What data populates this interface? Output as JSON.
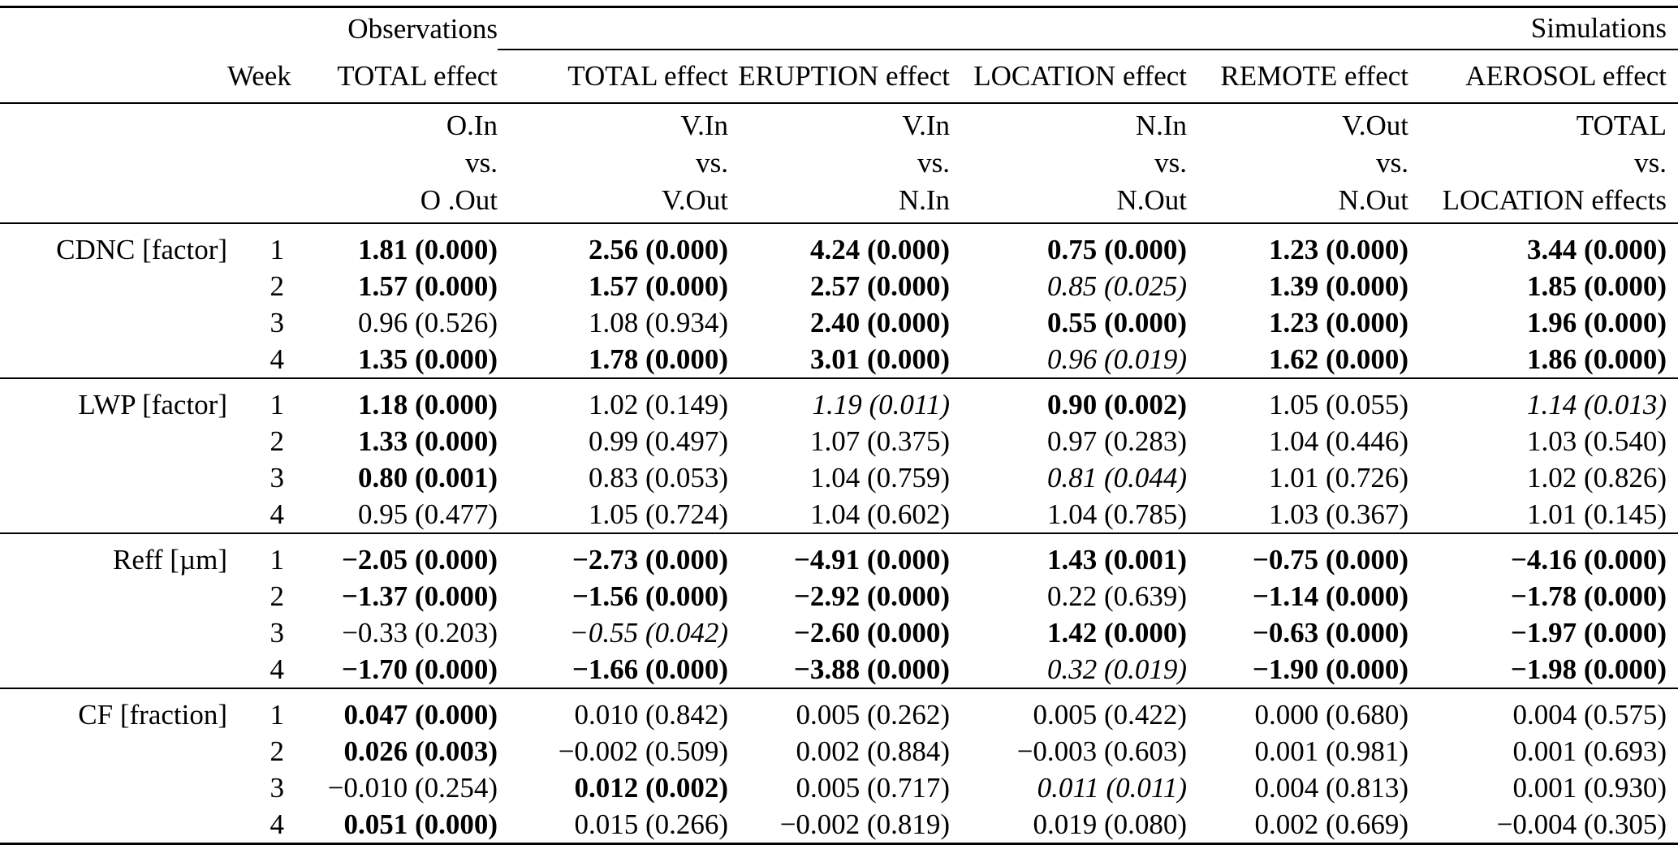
{
  "table": {
    "group_headers": {
      "observations": "Observations",
      "simulations": "Simulations"
    },
    "col_headers": [
      "Week",
      "TOTAL effect",
      "TOTAL effect",
      "ERUPTION effect",
      "LOCATION effect",
      "REMOTE effect",
      "AEROSOL effect"
    ],
    "sub_headers": [
      [
        "O.In",
        "vs.",
        "O .Out"
      ],
      [
        "V.In",
        "vs.",
        "V.Out"
      ],
      [
        "V.In",
        "vs.",
        "N.In"
      ],
      [
        "N.In",
        "vs.",
        "N.Out"
      ],
      [
        "V.Out",
        "vs.",
        "N.Out"
      ],
      [
        "TOTAL",
        "vs.",
        "LOCATION effects"
      ]
    ],
    "groups": [
      {
        "label": "CDNC [factor]",
        "rows": [
          {
            "week": "1",
            "cells": [
              {
                "v": "1.81 (0.000)",
                "s": "b"
              },
              {
                "v": "2.56 (0.000)",
                "s": "b"
              },
              {
                "v": "4.24 (0.000)",
                "s": "b"
              },
              {
                "v": "0.75 (0.000)",
                "s": "b"
              },
              {
                "v": "1.23 (0.000)",
                "s": "b"
              },
              {
                "v": "3.44 (0.000)",
                "s": "b"
              }
            ]
          },
          {
            "week": "2",
            "cells": [
              {
                "v": "1.57 (0.000)",
                "s": "b"
              },
              {
                "v": "1.57 (0.000)",
                "s": "b"
              },
              {
                "v": "2.57 (0.000)",
                "s": "b"
              },
              {
                "v": "0.85 (0.025)",
                "s": "i"
              },
              {
                "v": "1.39 (0.000)",
                "s": "b"
              },
              {
                "v": "1.85 (0.000)",
                "s": "b"
              }
            ]
          },
          {
            "week": "3",
            "cells": [
              {
                "v": "0.96 (0.526)",
                "s": "n"
              },
              {
                "v": "1.08 (0.934)",
                "s": "n"
              },
              {
                "v": "2.40 (0.000)",
                "s": "b"
              },
              {
                "v": "0.55 (0.000)",
                "s": "b"
              },
              {
                "v": "1.23 (0.000)",
                "s": "b"
              },
              {
                "v": "1.96 (0.000)",
                "s": "b"
              }
            ]
          },
          {
            "week": "4",
            "cells": [
              {
                "v": "1.35 (0.000)",
                "s": "b"
              },
              {
                "v": "1.78 (0.000)",
                "s": "b"
              },
              {
                "v": "3.01 (0.000)",
                "s": "b"
              },
              {
                "v": "0.96 (0.019)",
                "s": "i"
              },
              {
                "v": "1.62 (0.000)",
                "s": "b"
              },
              {
                "v": "1.86 (0.000)",
                "s": "b"
              }
            ]
          }
        ]
      },
      {
        "label": "LWP [factor]",
        "rows": [
          {
            "week": "1",
            "cells": [
              {
                "v": "1.18 (0.000)",
                "s": "b"
              },
              {
                "v": "1.02 (0.149)",
                "s": "n"
              },
              {
                "v": "1.19 (0.011)",
                "s": "i"
              },
              {
                "v": "0.90 (0.002)",
                "s": "b"
              },
              {
                "v": "1.05 (0.055)",
                "s": "n"
              },
              {
                "v": "1.14 (0.013)",
                "s": "i"
              }
            ]
          },
          {
            "week": "2",
            "cells": [
              {
                "v": "1.33 (0.000)",
                "s": "b"
              },
              {
                "v": "0.99 (0.497)",
                "s": "n"
              },
              {
                "v": "1.07 (0.375)",
                "s": "n"
              },
              {
                "v": "0.97 (0.283)",
                "s": "n"
              },
              {
                "v": "1.04 (0.446)",
                "s": "n"
              },
              {
                "v": "1.03 (0.540)",
                "s": "n"
              }
            ]
          },
          {
            "week": "3",
            "cells": [
              {
                "v": "0.80 (0.001)",
                "s": "b"
              },
              {
                "v": "0.83 (0.053)",
                "s": "n"
              },
              {
                "v": "1.04 (0.759)",
                "s": "n"
              },
              {
                "v": "0.81 (0.044)",
                "s": "i"
              },
              {
                "v": "1.01 (0.726)",
                "s": "n"
              },
              {
                "v": "1.02 (0.826)",
                "s": "n"
              }
            ]
          },
          {
            "week": "4",
            "cells": [
              {
                "v": "0.95 (0.477)",
                "s": "n"
              },
              {
                "v": "1.05 (0.724)",
                "s": "n"
              },
              {
                "v": "1.04 (0.602)",
                "s": "n"
              },
              {
                "v": "1.04 (0.785)",
                "s": "n"
              },
              {
                "v": "1.03 (0.367)",
                "s": "n"
              },
              {
                "v": "1.01 (0.145)",
                "s": "n"
              }
            ]
          }
        ]
      },
      {
        "label": "Reff [µm]",
        "rows": [
          {
            "week": "1",
            "cells": [
              {
                "v": "−2.05 (0.000)",
                "s": "b"
              },
              {
                "v": "−2.73 (0.000)",
                "s": "b"
              },
              {
                "v": "−4.91 (0.000)",
                "s": "b"
              },
              {
                "v": "1.43 (0.001)",
                "s": "b"
              },
              {
                "v": "−0.75 (0.000)",
                "s": "b"
              },
              {
                "v": "−4.16 (0.000)",
                "s": "b"
              }
            ]
          },
          {
            "week": "2",
            "cells": [
              {
                "v": "−1.37 (0.000)",
                "s": "b"
              },
              {
                "v": "−1.56 (0.000)",
                "s": "b"
              },
              {
                "v": "−2.92 (0.000)",
                "s": "b"
              },
              {
                "v": "0.22 (0.639)",
                "s": "n"
              },
              {
                "v": "−1.14 (0.000)",
                "s": "b"
              },
              {
                "v": "−1.78 (0.000)",
                "s": "b"
              }
            ]
          },
          {
            "week": "3",
            "cells": [
              {
                "v": "−0.33 (0.203)",
                "s": "n"
              },
              {
                "v": "−0.55 (0.042)",
                "s": "i"
              },
              {
                "v": "−2.60 (0.000)",
                "s": "b"
              },
              {
                "v": "1.42 (0.000)",
                "s": "b"
              },
              {
                "v": "−0.63 (0.000)",
                "s": "b"
              },
              {
                "v": "−1.97 (0.000)",
                "s": "b"
              }
            ]
          },
          {
            "week": "4",
            "cells": [
              {
                "v": "−1.70 (0.000)",
                "s": "b"
              },
              {
                "v": "−1.66 (0.000)",
                "s": "b"
              },
              {
                "v": "−3.88 (0.000)",
                "s": "b"
              },
              {
                "v": "0.32 (0.019)",
                "s": "i"
              },
              {
                "v": "−1.90 (0.000)",
                "s": "b"
              },
              {
                "v": "−1.98 (0.000)",
                "s": "b"
              }
            ]
          }
        ]
      },
      {
        "label": "CF [fraction]",
        "rows": [
          {
            "week": "1",
            "cells": [
              {
                "v": "0.047 (0.000)",
                "s": "b"
              },
              {
                "v": "0.010 (0.842)",
                "s": "n"
              },
              {
                "v": "0.005 (0.262)",
                "s": "n"
              },
              {
                "v": "0.005 (0.422)",
                "s": "n"
              },
              {
                "v": "0.000 (0.680)",
                "s": "n"
              },
              {
                "v": "0.004 (0.575)",
                "s": "n"
              }
            ]
          },
          {
            "week": "2",
            "cells": [
              {
                "v": "0.026 (0.003)",
                "s": "b"
              },
              {
                "v": "−0.002 (0.509)",
                "s": "n"
              },
              {
                "v": "0.002 (0.884)",
                "s": "n"
              },
              {
                "v": "−0.003 (0.603)",
                "s": "n"
              },
              {
                "v": "0.001 (0.981)",
                "s": "n"
              },
              {
                "v": "0.001 (0.693)",
                "s": "n"
              }
            ]
          },
          {
            "week": "3",
            "cells": [
              {
                "v": "−0.010 (0.254)",
                "s": "n"
              },
              {
                "v": "0.012 (0.002)",
                "s": "b"
              },
              {
                "v": "0.005 (0.717)",
                "s": "n"
              },
              {
                "v": "0.011 (0.011)",
                "s": "i"
              },
              {
                "v": "0.004 (0.813)",
                "s": "n"
              },
              {
                "v": "0.001 (0.930)",
                "s": "n"
              }
            ]
          },
          {
            "week": "4",
            "cells": [
              {
                "v": "0.051 (0.000)",
                "s": "b"
              },
              {
                "v": "0.015 (0.266)",
                "s": "n"
              },
              {
                "v": "−0.002 (0.819)",
                "s": "n"
              },
              {
                "v": "0.019 (0.080)",
                "s": "n"
              },
              {
                "v": "0.002 (0.669)",
                "s": "n"
              },
              {
                "v": "−0.004 (0.305)",
                "s": "n"
              }
            ]
          }
        ]
      }
    ]
  }
}
